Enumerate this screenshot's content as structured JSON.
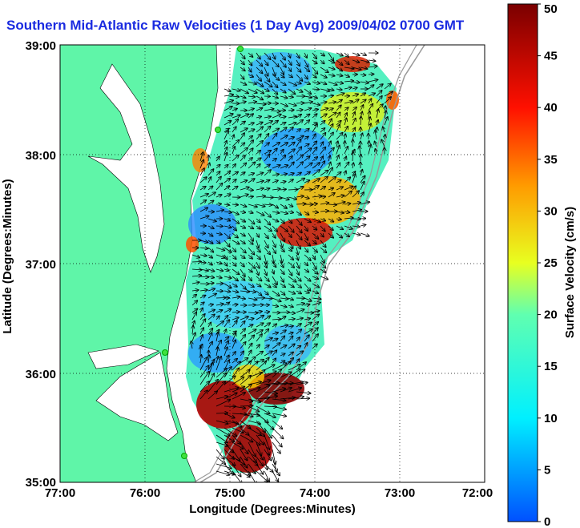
{
  "title": "Southern Mid-Atlantic Raw Velocities (1 Day Avg) 2009/04/02 0700 GMT",
  "map": {
    "xlabel": "Longitude (Degrees:Minutes)",
    "ylabel": "Latitude (Degrees:Minutes)",
    "x_ticks": [
      "77:00",
      "76:00",
      "75:00",
      "74:00",
      "73:00",
      "72:00"
    ],
    "y_ticks": [
      "39:00",
      "38:00",
      "37:00",
      "36:00",
      "35:00"
    ],
    "xlim": [
      -77,
      -72
    ],
    "ylim": [
      35,
      39
    ],
    "grid": "dotted",
    "land_color": "#5ff5a8"
  },
  "colorbar": {
    "label": "Surface Velocity (cm/s)",
    "ticks": [
      "0",
      "5",
      "10",
      "15",
      "20",
      "25",
      "30",
      "35",
      "40",
      "45",
      "50"
    ],
    "range": [
      0,
      50
    ]
  }
}
